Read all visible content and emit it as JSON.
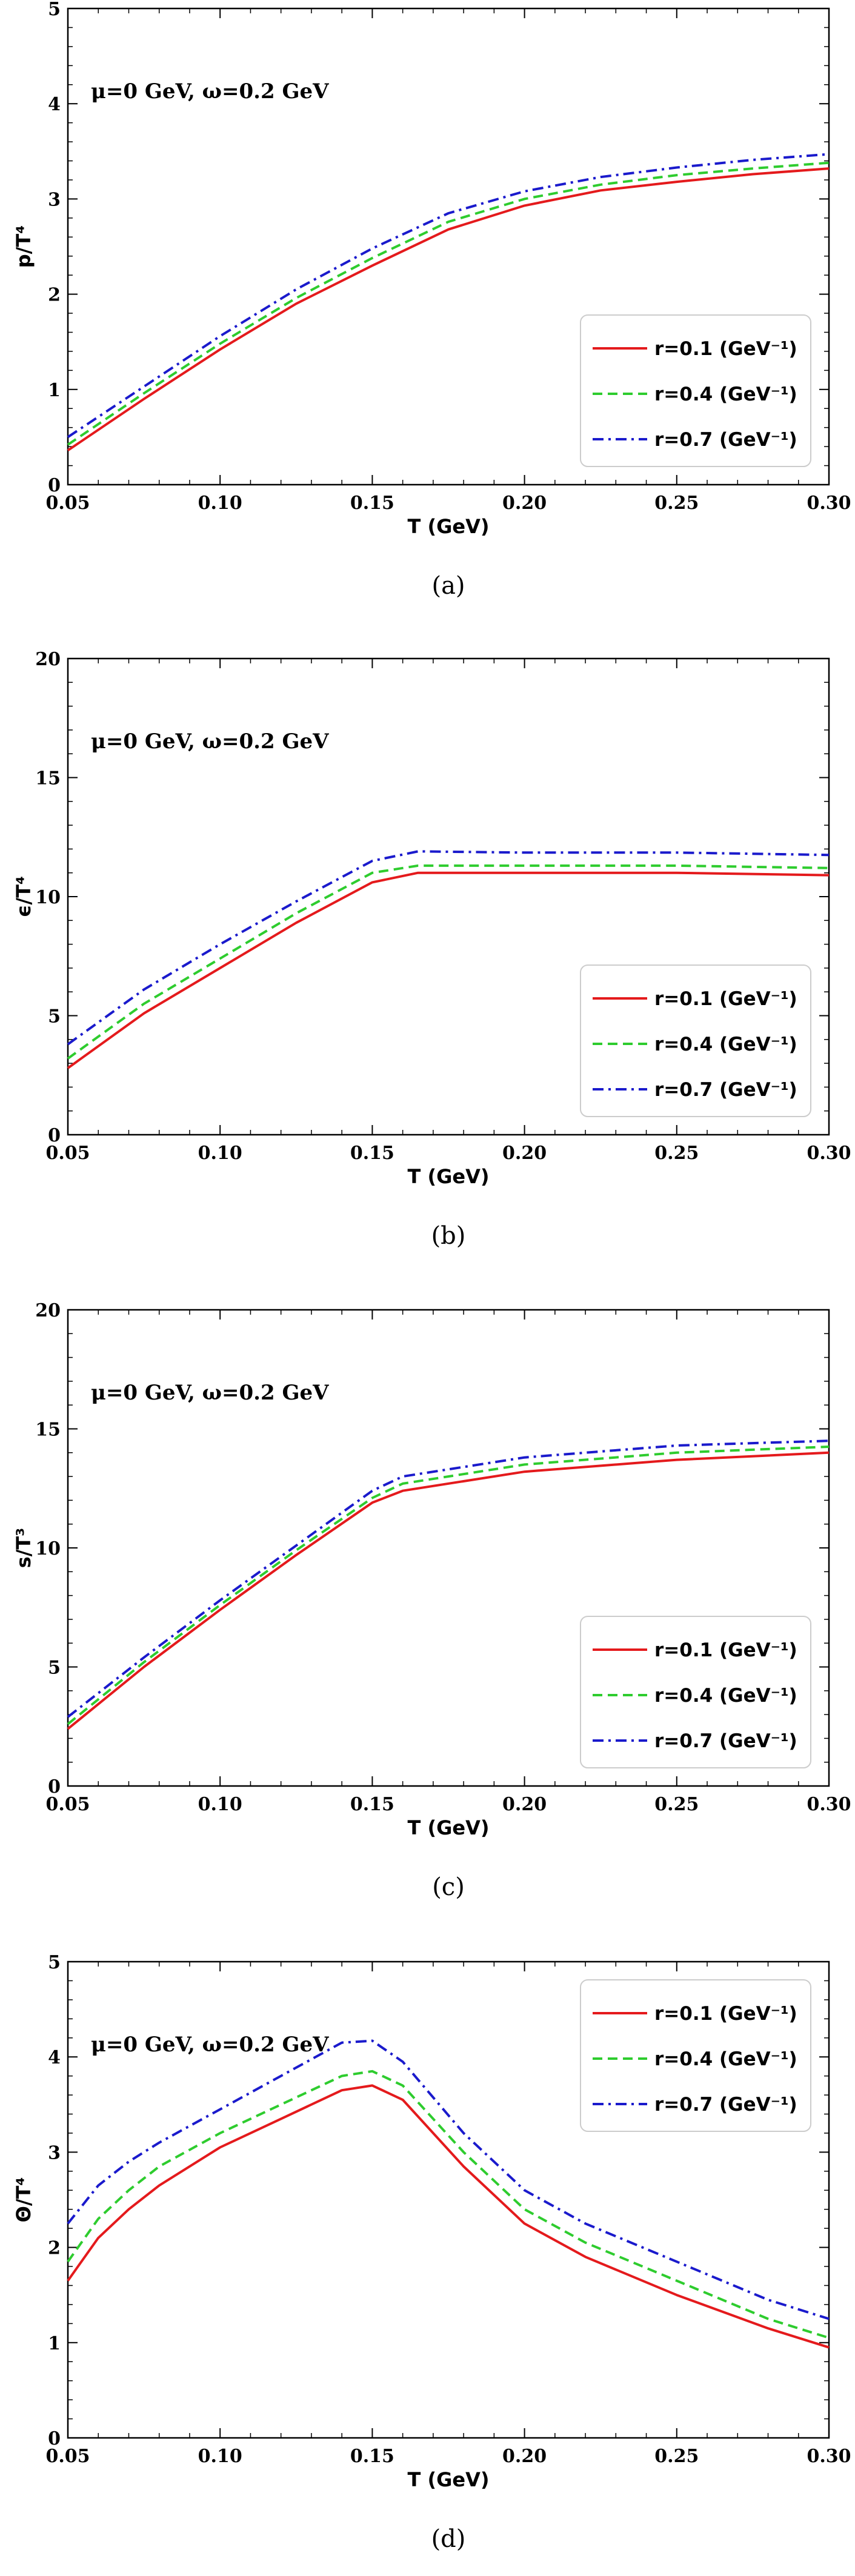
{
  "chart_data": [
    {
      "type": "line",
      "caption": "(a)",
      "xlabel": "T (GeV)",
      "ylabel": "p/T⁴",
      "annotation": "μ=0 GeV, ω=0.2 GeV",
      "xlim": [
        0.05,
        0.3
      ],
      "ylim": [
        0,
        5
      ],
      "xticks": [
        "0.05",
        "0.10",
        "0.15",
        "0.20",
        "0.25",
        "0.30"
      ],
      "yticks": [
        "0",
        "1",
        "2",
        "3",
        "4",
        "5"
      ],
      "grid": false,
      "legend_position": "lower-right",
      "x": [
        0.05,
        0.075,
        0.1,
        0.125,
        0.15,
        0.175,
        0.2,
        0.225,
        0.25,
        0.275,
        0.3
      ],
      "series": [
        {
          "name": "r=0.1 (GeV⁻¹)",
          "color": "#e41a1c",
          "dash": "solid",
          "values": [
            0.36,
            0.9,
            1.42,
            1.9,
            2.3,
            2.68,
            2.93,
            3.09,
            3.18,
            3.26,
            3.32
          ]
        },
        {
          "name": "r=0.4 (GeV⁻¹)",
          "color": "#2ecc2e",
          "dash": "dashed",
          "values": [
            0.42,
            0.96,
            1.48,
            1.96,
            2.38,
            2.76,
            3.0,
            3.15,
            3.25,
            3.32,
            3.38
          ]
        },
        {
          "name": "r=0.7 (GeV⁻¹)",
          "color": "#1a1acc",
          "dash": "dashdot",
          "values": [
            0.5,
            1.03,
            1.56,
            2.05,
            2.48,
            2.85,
            3.08,
            3.23,
            3.33,
            3.41,
            3.47
          ]
        }
      ]
    },
    {
      "type": "line",
      "caption": "(b)",
      "xlabel": "T (GeV)",
      "ylabel": "ϵ/T⁴",
      "annotation": "μ=0 GeV, ω=0.2 GeV",
      "xlim": [
        0.05,
        0.3
      ],
      "ylim": [
        0,
        20
      ],
      "xticks": [
        "0.05",
        "0.10",
        "0.15",
        "0.20",
        "0.25",
        "0.30"
      ],
      "yticks": [
        "0",
        "5",
        "10",
        "15",
        "20"
      ],
      "grid": false,
      "legend_position": "lower-right",
      "x": [
        0.05,
        0.075,
        0.1,
        0.125,
        0.15,
        0.165,
        0.2,
        0.25,
        0.3
      ],
      "series": [
        {
          "name": "r=0.1 (GeV⁻¹)",
          "color": "#e41a1c",
          "dash": "solid",
          "values": [
            2.8,
            5.1,
            7.0,
            8.9,
            10.6,
            11.0,
            11.0,
            11.0,
            10.9
          ]
        },
        {
          "name": "r=0.4 (GeV⁻¹)",
          "color": "#2ecc2e",
          "dash": "dashed",
          "values": [
            3.2,
            5.5,
            7.4,
            9.3,
            11.0,
            11.3,
            11.3,
            11.3,
            11.2
          ]
        },
        {
          "name": "r=0.7 (GeV⁻¹)",
          "color": "#1a1acc",
          "dash": "dashdot",
          "values": [
            3.8,
            6.1,
            8.0,
            9.8,
            11.5,
            11.9,
            11.85,
            11.85,
            11.75
          ]
        }
      ]
    },
    {
      "type": "line",
      "caption": "(c)",
      "xlabel": "T (GeV)",
      "ylabel": "s/T³",
      "annotation": "μ=0 GeV, ω=0.2 GeV",
      "xlim": [
        0.05,
        0.3
      ],
      "ylim": [
        0,
        20
      ],
      "xticks": [
        "0.05",
        "0.10",
        "0.15",
        "0.20",
        "0.25",
        "0.30"
      ],
      "yticks": [
        "0",
        "5",
        "10",
        "15",
        "20"
      ],
      "grid": false,
      "legend_position": "lower-right",
      "x": [
        0.05,
        0.075,
        0.1,
        0.125,
        0.15,
        0.16,
        0.2,
        0.25,
        0.3
      ],
      "series": [
        {
          "name": "r=0.1 (GeV⁻¹)",
          "color": "#e41a1c",
          "dash": "solid",
          "values": [
            2.4,
            5.0,
            7.4,
            9.7,
            11.9,
            12.4,
            13.2,
            13.7,
            14.0
          ]
        },
        {
          "name": "r=0.4 (GeV⁻¹)",
          "color": "#2ecc2e",
          "dash": "dashed",
          "values": [
            2.6,
            5.2,
            7.6,
            9.9,
            12.1,
            12.7,
            13.5,
            14.0,
            14.25
          ]
        },
        {
          "name": "r=0.7 (GeV⁻¹)",
          "color": "#1a1acc",
          "dash": "dashdot",
          "values": [
            2.9,
            5.4,
            7.8,
            10.1,
            12.4,
            13.0,
            13.8,
            14.3,
            14.5
          ]
        }
      ]
    },
    {
      "type": "line",
      "caption": "(d)",
      "xlabel": "T (GeV)",
      "ylabel": "Θ/T⁴",
      "annotation": "μ=0 GeV, ω=0.2 GeV",
      "xlim": [
        0.05,
        0.3
      ],
      "ylim": [
        0,
        5
      ],
      "xticks": [
        "0.05",
        "0.10",
        "0.15",
        "0.20",
        "0.25",
        "0.30"
      ],
      "yticks": [
        "0",
        "1",
        "2",
        "3",
        "4",
        "5"
      ],
      "grid": false,
      "legend_position": "top-right",
      "x": [
        0.05,
        0.06,
        0.07,
        0.08,
        0.1,
        0.12,
        0.14,
        0.15,
        0.16,
        0.18,
        0.2,
        0.22,
        0.25,
        0.28,
        0.3
      ],
      "series": [
        {
          "name": "r=0.1 (GeV⁻¹)",
          "color": "#e41a1c",
          "dash": "solid",
          "values": [
            1.65,
            2.1,
            2.4,
            2.65,
            3.05,
            3.35,
            3.65,
            3.7,
            3.55,
            2.85,
            2.25,
            1.9,
            1.5,
            1.15,
            0.95
          ]
        },
        {
          "name": "r=0.4 (GeV⁻¹)",
          "color": "#2ecc2e",
          "dash": "dashed",
          "values": [
            1.85,
            2.3,
            2.6,
            2.85,
            3.2,
            3.5,
            3.8,
            3.85,
            3.7,
            3.0,
            2.4,
            2.05,
            1.65,
            1.25,
            1.05
          ]
        },
        {
          "name": "r=0.7 (GeV⁻¹)",
          "color": "#1a1acc",
          "dash": "dashdot",
          "values": [
            2.25,
            2.65,
            2.9,
            3.1,
            3.45,
            3.8,
            4.15,
            4.17,
            3.95,
            3.2,
            2.6,
            2.25,
            1.85,
            1.45,
            1.25
          ]
        }
      ]
    }
  ]
}
